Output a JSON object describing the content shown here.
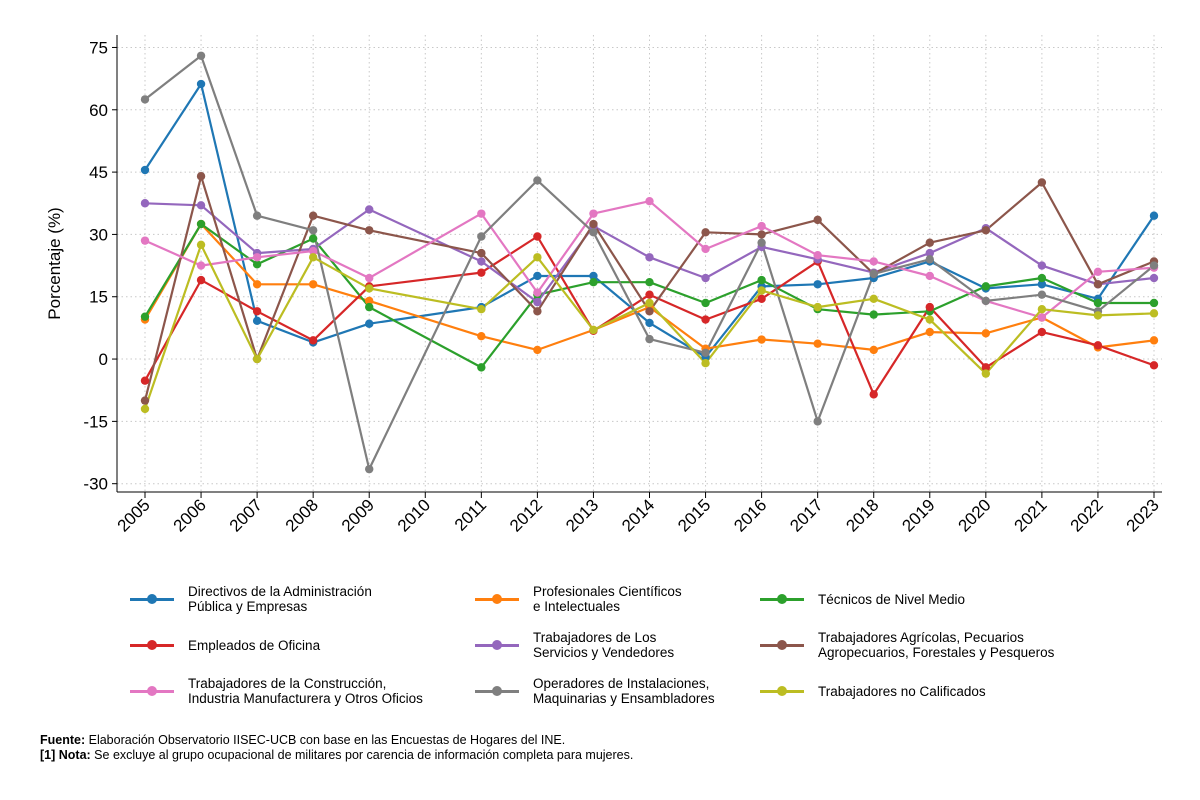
{
  "chart_data": {
    "type": "line",
    "title": "",
    "xlabel": "",
    "ylabel": "Porcentaje (%)",
    "ylim": [
      -32,
      78
    ],
    "yticks": [
      75,
      60,
      45,
      30,
      15,
      0,
      -15,
      -30
    ],
    "categories": [
      "2005",
      "2006",
      "2007",
      "2008",
      "2009",
      "2010",
      "2011",
      "2012",
      "2013",
      "2014",
      "2015",
      "2016",
      "2017",
      "2018",
      "2019",
      "2020",
      "2021",
      "2022",
      "2023"
    ],
    "grid": true,
    "series": [
      {
        "name": "Directivos de la Administración\nPública y Empresas",
        "color": "#1f77b4",
        "values": [
          45.5,
          66.2,
          9.2,
          4.0,
          8.5,
          null,
          12.5,
          20.0,
          20.0,
          8.7,
          0.5,
          17.5,
          18.0,
          19.5,
          23.5,
          17.0,
          18.0,
          14.5,
          34.5
        ]
      },
      {
        "name": "Profesionales Científicos\ne Intelectuales",
        "color": "#ff7f0e",
        "values": [
          9.5,
          32.5,
          18.0,
          18.0,
          14.0,
          null,
          5.5,
          2.2,
          7.0,
          12.5,
          2.5,
          4.7,
          3.7,
          2.2,
          6.5,
          6.2,
          10.0,
          2.8,
          4.5
        ]
      },
      {
        "name": "Técnicos de Nivel Medio",
        "color": "#2ca02c",
        "values": [
          10.2,
          32.5,
          22.8,
          29.0,
          12.5,
          null,
          -2.0,
          15.5,
          18.5,
          18.5,
          13.5,
          19.0,
          12.0,
          10.7,
          11.5,
          17.5,
          19.5,
          13.5,
          13.5
        ]
      },
      {
        "name": "Empleados de Oficina",
        "color": "#d62728",
        "values": [
          -5.2,
          19.0,
          11.5,
          4.5,
          17.5,
          null,
          20.8,
          29.5,
          6.8,
          15.5,
          9.5,
          14.5,
          23.5,
          -8.5,
          12.5,
          -2.0,
          6.5,
          3.3,
          -1.5
        ]
      },
      {
        "name": "Trabajadores de Los\nServicios y Vendedores",
        "color": "#9467bd",
        "values": [
          37.5,
          37.0,
          25.5,
          26.5,
          36.0,
          null,
          23.5,
          13.7,
          32.0,
          24.5,
          19.5,
          27.0,
          24.0,
          20.8,
          25.5,
          31.5,
          22.5,
          18.0,
          19.5
        ]
      },
      {
        "name": "Trabajadores Agrícolas, Pecuarios\nAgropecuarios, Forestales y Pesqueros",
        "color": "#8c564b",
        "values": [
          -10.0,
          44.0,
          0.0,
          34.5,
          31.0,
          null,
          25.5,
          11.5,
          32.5,
          11.5,
          30.5,
          30.0,
          33.5,
          20.5,
          28.0,
          31.0,
          42.5,
          18.0,
          23.5
        ]
      },
      {
        "name": "Trabajadores de la Construcción,\nIndustria Manufacturera y Otros Oficios",
        "color": "#e377c2",
        "values": [
          28.5,
          22.5,
          24.5,
          26.0,
          19.5,
          null,
          35.0,
          16.0,
          35.0,
          38.0,
          26.5,
          32.0,
          25.0,
          23.5,
          20.0,
          14.0,
          10.0,
          21.0,
          22.0
        ]
      },
      {
        "name": "Operadores de Instalaciones,\nMaquinarias y Ensambladores",
        "color": "#7f7f7f",
        "values": [
          62.5,
          73.0,
          34.5,
          31.0,
          -26.5,
          null,
          29.5,
          43.0,
          30.5,
          4.8,
          1.5,
          28.0,
          -15.0,
          20.5,
          24.0,
          14.0,
          15.5,
          11.5,
          22.5
        ]
      },
      {
        "name": "Trabajadores no Calificados",
        "color": "#bcbd22",
        "values": [
          -12.0,
          27.5,
          0.0,
          24.5,
          17.0,
          null,
          12.0,
          24.5,
          7.0,
          13.5,
          -1.0,
          16.5,
          12.5,
          14.5,
          9.5,
          -3.5,
          12.0,
          10.5,
          11.0
        ]
      }
    ]
  },
  "notes": {
    "source_label": "Fuente:",
    "source_text": " Elaboración Observatorio IISEC-UCB con base en las Encuestas de Hogares del INE.",
    "note_label": "[1] Nota:",
    "note_text": " Se excluye al grupo ocupacional de militares por carencia de información completa para mujeres."
  }
}
